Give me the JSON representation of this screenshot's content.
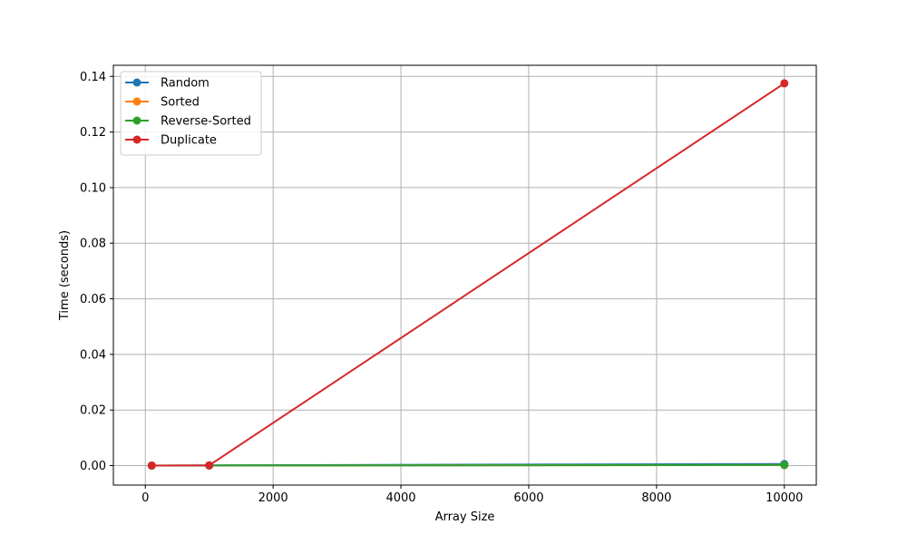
{
  "chart_data": {
    "type": "line",
    "title": "",
    "xlabel": "Array Size",
    "ylabel": "Time (seconds)",
    "xlim": [
      -500,
      10500
    ],
    "ylim": [
      -0.007,
      0.144
    ],
    "xticks": [
      0,
      2000,
      4000,
      6000,
      8000,
      10000
    ],
    "xtick_labels": [
      "0",
      "2000",
      "4000",
      "6000",
      "8000",
      "10000"
    ],
    "yticks": [
      0.0,
      0.02,
      0.04,
      0.06,
      0.08,
      0.1,
      0.12,
      0.14
    ],
    "ytick_labels": [
      "0.00",
      "0.02",
      "0.04",
      "0.06",
      "0.08",
      "0.10",
      "0.12",
      "0.14"
    ],
    "grid": true,
    "legend_position": "top-left",
    "x": [
      100,
      1000,
      10000
    ],
    "series": [
      {
        "name": "Random",
        "color": "#1f77b4",
        "values": [
          2e-05,
          0.0001,
          0.0006
        ]
      },
      {
        "name": "Sorted",
        "color": "#ff7f0e",
        "values": [
          1e-05,
          3e-05,
          0.0002
        ]
      },
      {
        "name": "Reverse-Sorted",
        "color": "#2ca02c",
        "values": [
          1e-05,
          3e-05,
          0.0002
        ]
      },
      {
        "name": "Duplicate",
        "color": "#d62728",
        "values": [
          2e-05,
          0.0001,
          0.1375
        ]
      }
    ]
  }
}
